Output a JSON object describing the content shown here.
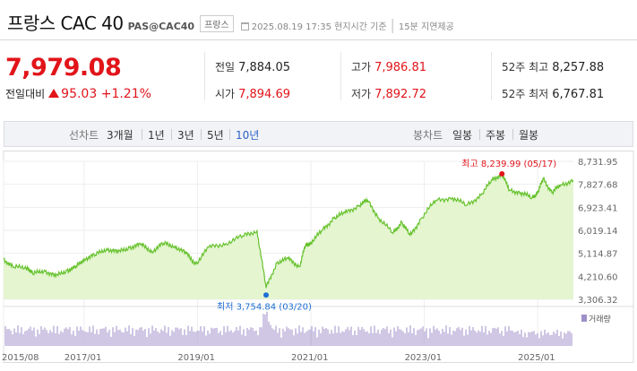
{
  "header": {
    "title": "프랑스 CAC 40",
    "code": "PAS@CAC40",
    "country_badge": "프랑스",
    "datetime": "2025.08.19 17:35 현지시간 기준",
    "delay": "15분 지연제공"
  },
  "quote": {
    "price": "7,979.08",
    "change_label": "전일대비",
    "change": "95.03",
    "change_pct": "+1.21%",
    "direction": "up",
    "up_color": "#e1141a"
  },
  "stats": [
    {
      "label": "전일",
      "value": "7,884.05",
      "highlight": false
    },
    {
      "label": "고가",
      "value": "7,986.81",
      "highlight": true
    },
    {
      "label": "52주 최고",
      "value": "8,257.88",
      "highlight": false
    },
    {
      "label": "시가",
      "value": "7,894.69",
      "highlight": true
    },
    {
      "label": "저가",
      "value": "7,892.72",
      "highlight": true
    },
    {
      "label": "52주 최저",
      "value": "6,767.81",
      "highlight": false
    }
  ],
  "tabs": {
    "line_label": "선차트",
    "line_periods": [
      "3개월",
      "1년",
      "3년",
      "5년",
      "10년"
    ],
    "line_active": "10년",
    "candle_label": "봉차트",
    "candle_periods": [
      "일봉",
      "주봉",
      "월봉"
    ]
  },
  "chart_data": {
    "type": "area",
    "title": "",
    "xlabel": "",
    "ylabel": "",
    "ylim": [
      3306.32,
      8731.95
    ],
    "y_ticks": [
      "8,731.95",
      "7,827.68",
      "6,923.41",
      "6,019.14",
      "5,114.87",
      "4,210.60",
      "3,306.32"
    ],
    "x_ticks": [
      "2015/08",
      "2017/01",
      "2019/01",
      "2021/01",
      "2023/01",
      "2025/01"
    ],
    "x_tick_years": [
      2015.58,
      2017.0,
      2019.0,
      2021.0,
      2023.0,
      2025.0
    ],
    "series": [
      {
        "x": [
          2015.58,
          2015.75,
          2016.0,
          2016.1,
          2016.3,
          2016.5,
          2016.7,
          2016.85,
          2017.0,
          2017.2,
          2017.4,
          2017.6,
          2017.8,
          2018.0,
          2018.2,
          2018.4,
          2018.6,
          2018.8,
          2018.97,
          2019.2,
          2019.5,
          2019.8,
          2020.05,
          2020.21,
          2020.4,
          2020.6,
          2020.8,
          2020.9,
          2021.0,
          2021.2,
          2021.4,
          2021.6,
          2021.85,
          2022.0,
          2022.2,
          2022.45,
          2022.6,
          2022.75,
          2022.95,
          2023.2,
          2023.5,
          2023.75,
          2024.0,
          2024.2,
          2024.37,
          2024.5,
          2024.7,
          2024.9,
          2025.0,
          2025.1,
          2025.25,
          2025.4,
          2025.63
        ],
        "values": [
          4900,
          4550,
          4580,
          4300,
          4450,
          4200,
          4450,
          4550,
          4900,
          5050,
          5300,
          5150,
          5350,
          5450,
          5200,
          5500,
          5400,
          5100,
          4700,
          5350,
          5500,
          5800,
          6000,
          3754.84,
          4750,
          4900,
          4600,
          5400,
          5550,
          6000,
          6500,
          6700,
          7000,
          7200,
          6500,
          5900,
          6350,
          5800,
          6500,
          7200,
          7300,
          7000,
          7400,
          8000,
          8239.99,
          7600,
          7500,
          7300,
          7500,
          8050,
          7500,
          7800,
          7979.08
        ],
        "color": "#66c22d",
        "fill": "#e4f5d0"
      }
    ],
    "volume_label": "거래량",
    "volume_color": "#9f8fc8",
    "max_annotation": {
      "label": "최고 8,239.99 (05/17)",
      "x": 2024.37,
      "value": 8239.99,
      "color": "#e1141a"
    },
    "min_annotation": {
      "label": "최저 3,754.84 (03/20)",
      "x": 2020.21,
      "value": 3754.84,
      "color": "#1f6fd6"
    }
  }
}
